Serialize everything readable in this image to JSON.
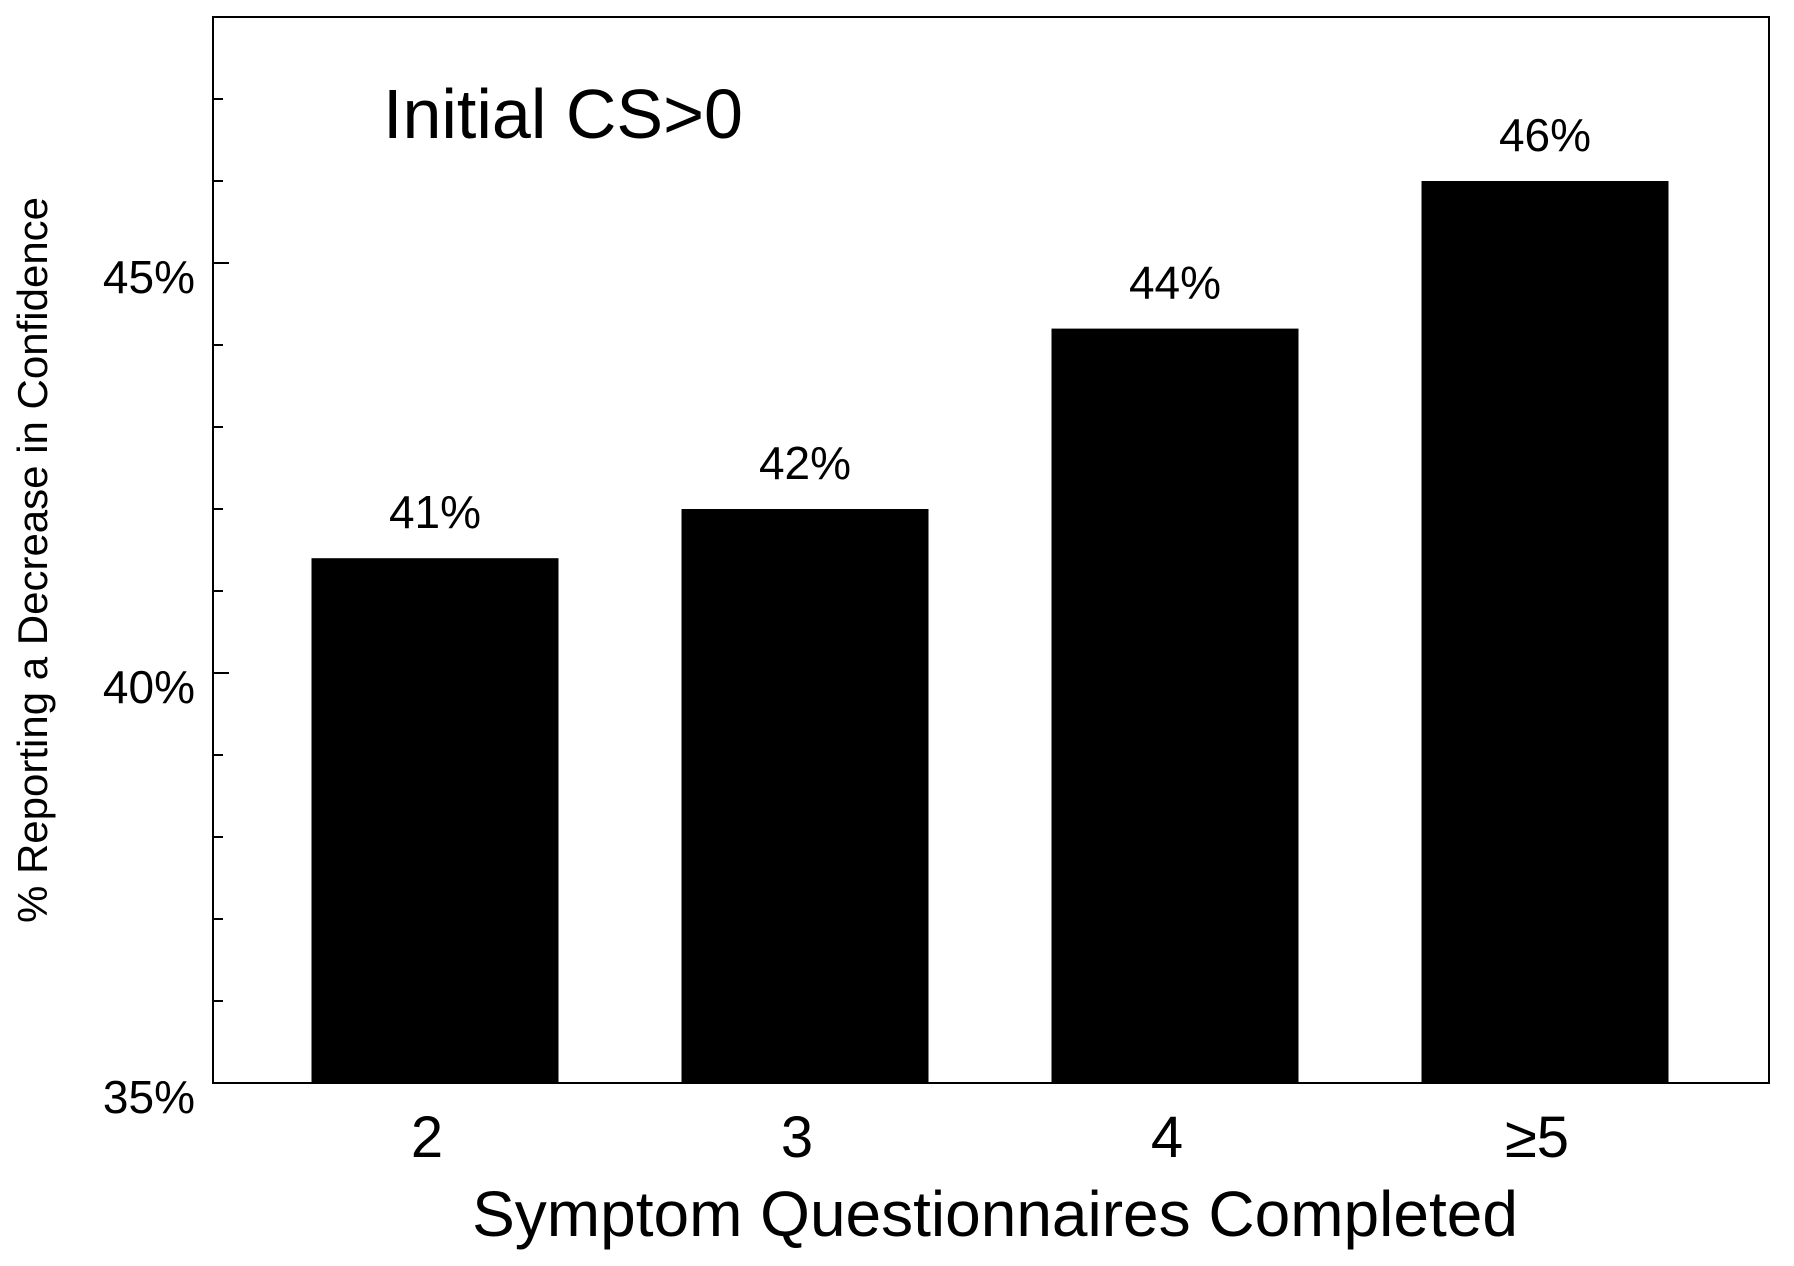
{
  "chart_data": {
    "type": "bar",
    "title": "Initial CS>0",
    "xlabel": "Symptom Questionnaires Completed",
    "ylabel": "% Reporting a Decrease in Confidence",
    "categories": [
      "2",
      "3",
      "4",
      "≥5"
    ],
    "values": [
      41.4,
      42.0,
      44.2,
      46.0
    ],
    "data_labels": [
      "41%",
      "42%",
      "44%",
      "46%"
    ],
    "ylim": [
      35,
      48
    ],
    "yticks": [
      35,
      40,
      45
    ],
    "ytick_labels": [
      "35%",
      "40%",
      "45%"
    ],
    "yminor_step": 1,
    "grid": false,
    "bar_color": "#000000"
  }
}
